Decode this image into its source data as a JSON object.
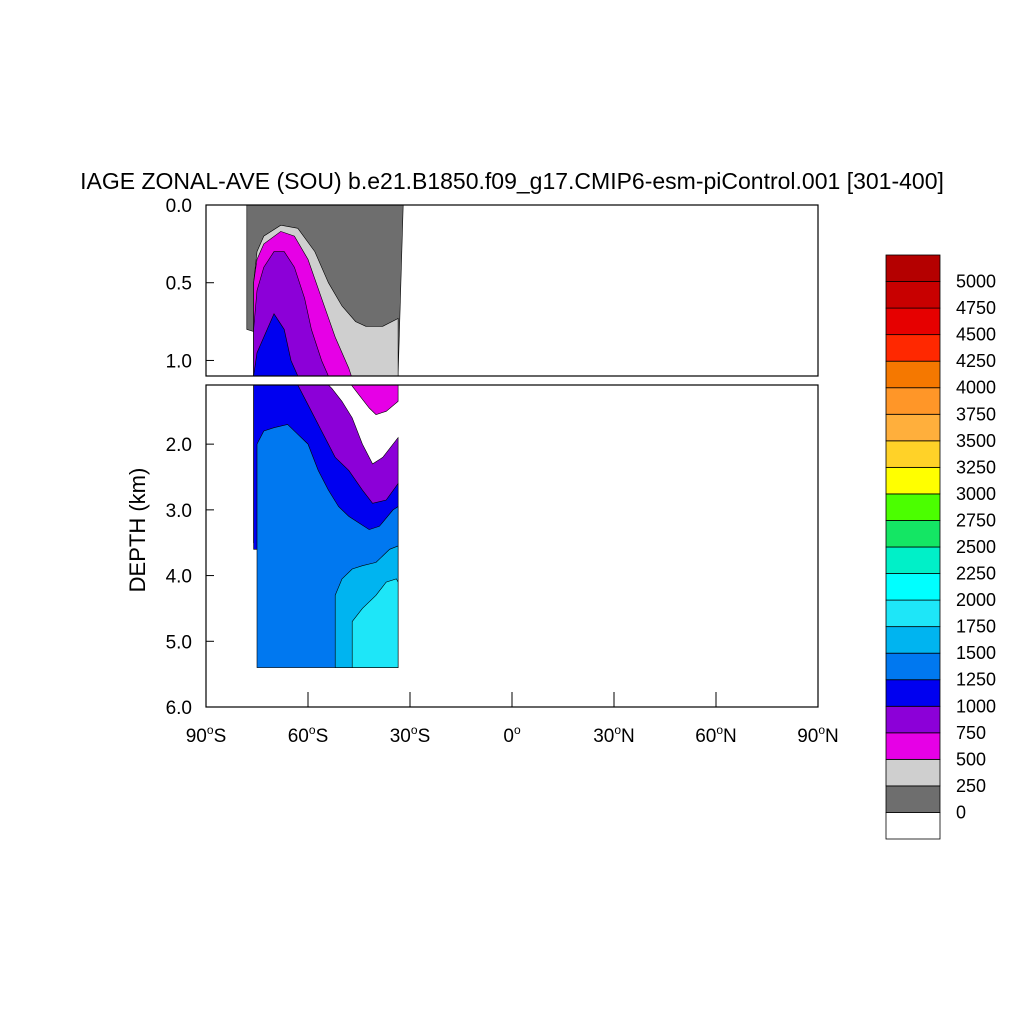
{
  "chart_data": {
    "type": "heatmap",
    "title": "IAGE ZONAL-AVE (SOU) b.e21.B1850.f09_g17.CMIP6-esm-piControl.001 [301-400]",
    "ylabel": "DEPTH (km)",
    "xlabel": "",
    "x_ticks": [
      {
        "value": -90,
        "deg": "90",
        "hem": "S"
      },
      {
        "value": -60,
        "deg": "60",
        "hem": "S"
      },
      {
        "value": -30,
        "deg": "30",
        "hem": "S"
      },
      {
        "value": 0,
        "deg": "0",
        "hem": ""
      },
      {
        "value": 30,
        "deg": "30",
        "hem": "N"
      },
      {
        "value": 60,
        "deg": "60",
        "hem": "N"
      },
      {
        "value": 90,
        "deg": "90",
        "hem": "N"
      }
    ],
    "xlim": [
      -90,
      90
    ],
    "upper_panel": {
      "ylim": [
        0,
        1.1
      ],
      "ticks": [
        {
          "value": 0,
          "label": "0.0"
        },
        {
          "value": 0.5,
          "label": "0.5"
        },
        {
          "value": 1.0,
          "label": "1.0"
        }
      ]
    },
    "lower_panel": {
      "ylim": [
        1.1,
        6.0
      ],
      "ticks": [
        {
          "value": 2,
          "label": "2.0"
        },
        {
          "value": 3,
          "label": "3.0"
        },
        {
          "value": 4,
          "label": "4.0"
        },
        {
          "value": 5,
          "label": "5.0"
        },
        {
          "value": 6,
          "label": "6.0"
        }
      ]
    },
    "levels": [
      0,
      250,
      500,
      750,
      1000,
      1250,
      1500,
      1750,
      2000,
      2250,
      2500,
      2750,
      3000,
      3250,
      3500,
      3750,
      4000,
      4250,
      4500,
      4750,
      5000
    ],
    "level_labels": [
      "0",
      "250",
      "500",
      "750",
      "1000",
      "1250",
      "1500",
      "1750",
      "2000",
      "2250",
      "2500",
      "2750",
      "3000",
      "3250",
      "3500",
      "3750",
      "4000",
      "4250",
      "4500",
      "4750",
      "5000"
    ],
    "colorbar_colors": [
      "#ffffff",
      "#6e6e6e",
      "#cfcfcf",
      "#e600e6",
      "#8c00d8",
      "#0000f0",
      "#0078f0",
      "#00b4f0",
      "#1ee6f8",
      "#00ffff",
      "#00f0c8",
      "#14e664",
      "#4bff00",
      "#ffff00",
      "#ffd228",
      "#ffaf3c",
      "#ff9628",
      "#f57800",
      "#ff2800",
      "#e60000",
      "#c80000",
      "#b40000"
    ],
    "contour_regions": [
      {
        "level": 0,
        "color": "#6e6e6e",
        "lower": 0,
        "upper": 250,
        "outline": [
          [
            -78,
            0
          ],
          [
            -32,
            0
          ],
          [
            -33.5,
            1.1
          ],
          [
            -78,
            0.8
          ]
        ]
      },
      {
        "level": 250,
        "color": "#cfcfcf",
        "lower": 250,
        "upper": 500,
        "outline": [
          [
            -76,
            1.1
          ],
          [
            -76,
            0.5
          ],
          [
            -75,
            0.3
          ],
          [
            -73,
            0.2
          ],
          [
            -68,
            0.13
          ],
          [
            -63,
            0.15
          ],
          [
            -58,
            0.3
          ],
          [
            -54,
            0.5
          ],
          [
            -50,
            0.65
          ],
          [
            -46,
            0.75
          ],
          [
            -43,
            0.78
          ],
          [
            -38,
            0.78
          ],
          [
            -33.5,
            0.73
          ],
          [
            -33.5,
            1.1
          ]
        ]
      },
      {
        "level": 500,
        "color": "#e600e6",
        "lower": 500,
        "upper": 750,
        "outline": [
          [
            -76,
            1.1
          ],
          [
            -76,
            0.5
          ],
          [
            -75,
            0.35
          ],
          [
            -73,
            0.25
          ],
          [
            -68,
            0.17
          ],
          [
            -64,
            0.2
          ],
          [
            -60,
            0.35
          ],
          [
            -56,
            0.6
          ],
          [
            -52,
            0.85
          ],
          [
            -48,
            1.05
          ],
          [
            -45,
            1.25
          ],
          [
            -42,
            1.45
          ],
          [
            -40,
            1.55
          ],
          [
            -37,
            1.5
          ],
          [
            -33.5,
            1.35
          ],
          [
            -33.5,
            1.1
          ]
        ]
      },
      {
        "level": 750,
        "color": "#8c00d8",
        "lower": 750,
        "upper": 1000,
        "outline": [
          [
            -76,
            0.8
          ],
          [
            -75,
            0.55
          ],
          [
            -73,
            0.4
          ],
          [
            -70,
            0.3
          ],
          [
            -67,
            0.3
          ],
          [
            -64,
            0.4
          ],
          [
            -61,
            0.6
          ],
          [
            -59,
            0.8
          ],
          [
            -56,
            1.0
          ],
          [
            -53,
            1.15
          ],
          [
            -50,
            1.35
          ],
          [
            -47,
            1.6
          ],
          [
            -44,
            2.0
          ],
          [
            -41,
            2.3
          ],
          [
            -38,
            2.2
          ],
          [
            -33.5,
            1.9
          ],
          [
            -33.5,
            3.5
          ],
          [
            -76,
            3.5
          ]
        ]
      },
      {
        "level": 1000,
        "color": "#0000f0",
        "lower": 1000,
        "upper": 1250,
        "outline": [
          [
            -76,
            1.1
          ],
          [
            -75,
            0.95
          ],
          [
            -73,
            0.85
          ],
          [
            -70,
            0.7
          ],
          [
            -67,
            0.8
          ],
          [
            -65,
            1.0
          ],
          [
            -63,
            1.1
          ],
          [
            -60,
            1.4
          ],
          [
            -56,
            1.8
          ],
          [
            -52,
            2.2
          ],
          [
            -48,
            2.4
          ],
          [
            -44,
            2.7
          ],
          [
            -41,
            2.9
          ],
          [
            -37,
            2.85
          ],
          [
            -33.5,
            2.6
          ],
          [
            -33.5,
            3.6
          ],
          [
            -76,
            3.6
          ]
        ]
      },
      {
        "level": 1250,
        "color": "#0078f0",
        "lower": 1250,
        "upper": 1500,
        "outline": [
          [
            -75,
            2.0
          ],
          [
            -73,
            1.8
          ],
          [
            -70,
            1.75
          ],
          [
            -66,
            1.7
          ],
          [
            -63,
            1.85
          ],
          [
            -60,
            2.0
          ],
          [
            -57,
            2.4
          ],
          [
            -54,
            2.7
          ],
          [
            -51,
            2.95
          ],
          [
            -48,
            3.1
          ],
          [
            -45,
            3.2
          ],
          [
            -42,
            3.3
          ],
          [
            -39,
            3.25
          ],
          [
            -35,
            3.0
          ],
          [
            -33.5,
            2.95
          ],
          [
            -33.5,
            5.4
          ],
          [
            -75,
            5.4
          ]
        ]
      },
      {
        "level": 1500,
        "color": "#00b4f0",
        "lower": 1500,
        "upper": 1750,
        "outline": [
          [
            -52,
            4.3
          ],
          [
            -50,
            4.05
          ],
          [
            -47,
            3.9
          ],
          [
            -44,
            3.85
          ],
          [
            -40,
            3.8
          ],
          [
            -36,
            3.6
          ],
          [
            -33.5,
            3.55
          ],
          [
            -33.5,
            5.4
          ],
          [
            -52,
            5.4
          ]
        ]
      },
      {
        "level": 1750,
        "color": "#1ee6f8",
        "lower": 1750,
        "upper": 2000,
        "outline": [
          [
            -47,
            4.7
          ],
          [
            -44,
            4.5
          ],
          [
            -40,
            4.3
          ],
          [
            -37,
            4.1
          ],
          [
            -34,
            4.05
          ],
          [
            -33.5,
            4.1
          ],
          [
            -33.5,
            5.4
          ],
          [
            -47,
            5.4
          ]
        ]
      }
    ]
  },
  "colorbar": {
    "labels": [
      "0",
      "250",
      "500",
      "750",
      "1000",
      "1250",
      "1500",
      "1750",
      "2000",
      "2250",
      "2500",
      "2750",
      "3000",
      "3250",
      "3500",
      "3750",
      "4000",
      "4250",
      "4500",
      "4750",
      "5000"
    ]
  }
}
